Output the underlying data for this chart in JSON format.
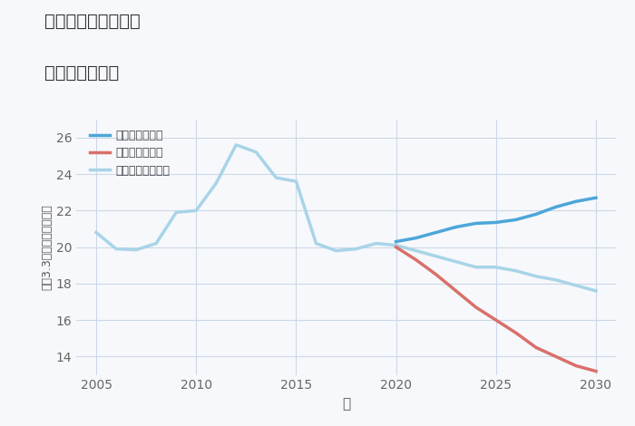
{
  "title_line1": "千葉県成田市官林の",
  "title_line2": "土地の価格推移",
  "xlabel": "年",
  "ylabel": "坪（3.3㎡）単価（万円）",
  "ylim": [
    13,
    27
  ],
  "xlim": [
    2004,
    2031
  ],
  "yticks": [
    14,
    16,
    18,
    20,
    22,
    24,
    26
  ],
  "xticks": [
    2005,
    2010,
    2015,
    2020,
    2025,
    2030
  ],
  "normal_x": [
    2005,
    2006,
    2007,
    2008,
    2009,
    2010,
    2011,
    2012,
    2013,
    2014,
    2015,
    2016,
    2017,
    2018,
    2019,
    2020
  ],
  "normal_y": [
    20.8,
    19.9,
    19.85,
    20.2,
    21.9,
    22.0,
    23.5,
    25.6,
    25.2,
    23.8,
    23.6,
    20.2,
    19.8,
    19.9,
    20.2,
    20.1
  ],
  "good_x": [
    2020,
    2021,
    2022,
    2023,
    2024,
    2025,
    2026,
    2027,
    2028,
    2029,
    2030
  ],
  "good_y": [
    20.3,
    20.5,
    20.8,
    21.1,
    21.3,
    21.35,
    21.5,
    21.8,
    22.2,
    22.5,
    22.7
  ],
  "bad_x": [
    2020,
    2021,
    2022,
    2023,
    2024,
    2025,
    2026,
    2027,
    2028,
    2029,
    2030
  ],
  "bad_y": [
    20.0,
    19.3,
    18.5,
    17.6,
    16.7,
    16.0,
    15.3,
    14.5,
    14.0,
    13.5,
    13.2
  ],
  "normal_future_x": [
    2020,
    2021,
    2022,
    2023,
    2024,
    2025,
    2026,
    2027,
    2028,
    2029,
    2030
  ],
  "normal_future_y": [
    20.1,
    19.8,
    19.5,
    19.2,
    18.9,
    18.9,
    18.7,
    18.4,
    18.2,
    17.9,
    17.6
  ],
  "color_good": "#4da6d9",
  "color_bad": "#d9706a",
  "color_normal_hist": "#a8d4e8",
  "color_normal_future": "#a8d4e8",
  "color_title": "#333333",
  "color_bg": "#f7f8fb",
  "color_plot_bg": "#f7f8fb",
  "color_grid": "#ccd8e8",
  "legend_good": "グッドシナリオ",
  "legend_bad": "バッドシナリオ",
  "legend_normal": "ノーマルシナリオ"
}
